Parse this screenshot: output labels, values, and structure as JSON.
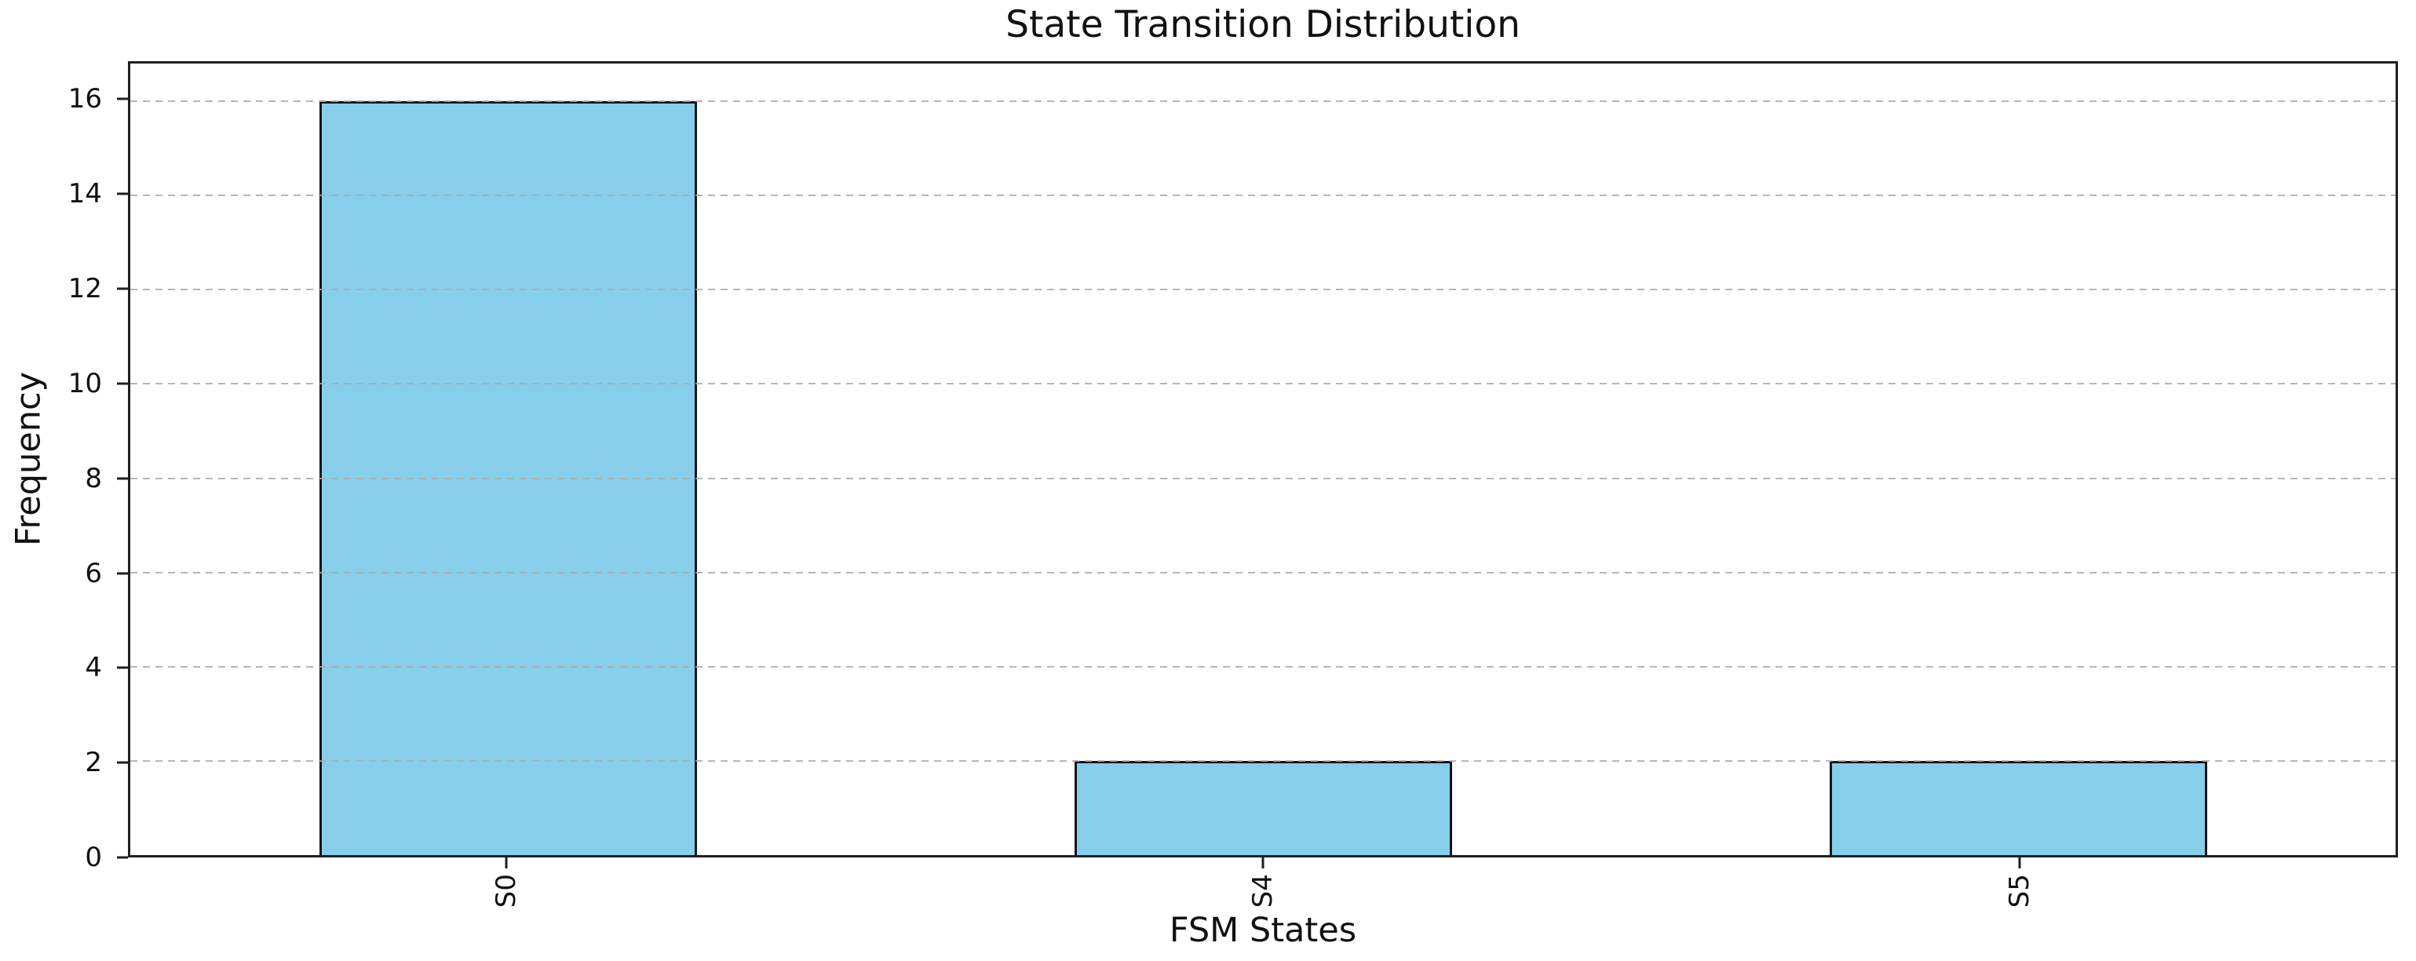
{
  "chart_data": {
    "type": "bar",
    "title": "State Transition Distribution",
    "xlabel": "FSM States",
    "ylabel": "Frequency",
    "categories": [
      "S0",
      "S4",
      "S5"
    ],
    "values": [
      16,
      2,
      2
    ],
    "yticks": [
      0,
      2,
      4,
      6,
      8,
      10,
      12,
      14,
      16
    ],
    "ylim": [
      0,
      16.8
    ],
    "bar_color": "#87CEEB",
    "bar_edge_color": "#151515",
    "grid": "horizontal-dashed",
    "grid_color": "#aaaaaa",
    "x_tick_rotation": 90,
    "bar_width_fraction": 0.5,
    "legend_position": "none"
  }
}
